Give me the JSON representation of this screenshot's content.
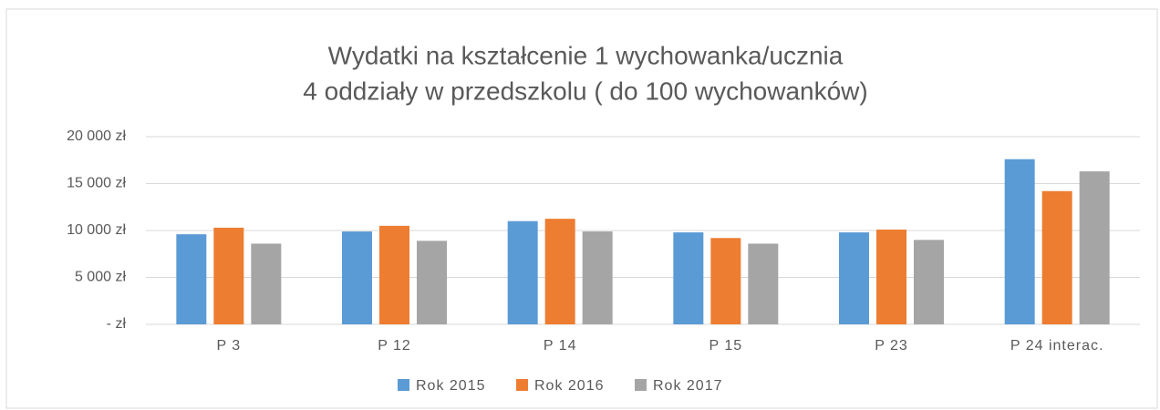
{
  "chart_data": {
    "type": "bar",
    "title": [
      "Wydatki na kształcenie 1 wychowanka/ucznia",
      "4 oddziały w przedszkolu ( do 100 wychowanków)"
    ],
    "categories": [
      "P 3",
      "P 12",
      "P 14",
      "P 15",
      "P 23",
      "P 24 interac."
    ],
    "series": [
      {
        "name": "Rok 2015",
        "color": "#5b9bd5",
        "values": [
          9600,
          9900,
          11000,
          9800,
          9800,
          17600
        ]
      },
      {
        "name": "Rok 2016",
        "color": "#ed7d31",
        "values": [
          10300,
          10500,
          11250,
          9200,
          10100,
          14200
        ]
      },
      {
        "name": "Rok 2017",
        "color": "#a5a5a5",
        "values": [
          8600,
          8900,
          9900,
          8600,
          9000,
          16300
        ]
      }
    ],
    "ylim": [
      0,
      20000
    ],
    "yticks": [
      {
        "value": 0,
        "label": "- zł"
      },
      {
        "value": 5000,
        "label": "5 000 zł"
      },
      {
        "value": 10000,
        "label": "10 000 zł"
      },
      {
        "value": 15000,
        "label": "15 000 zł"
      },
      {
        "value": 20000,
        "label": "20 000 zł"
      }
    ],
    "grid": true,
    "legend": "bottom"
  }
}
